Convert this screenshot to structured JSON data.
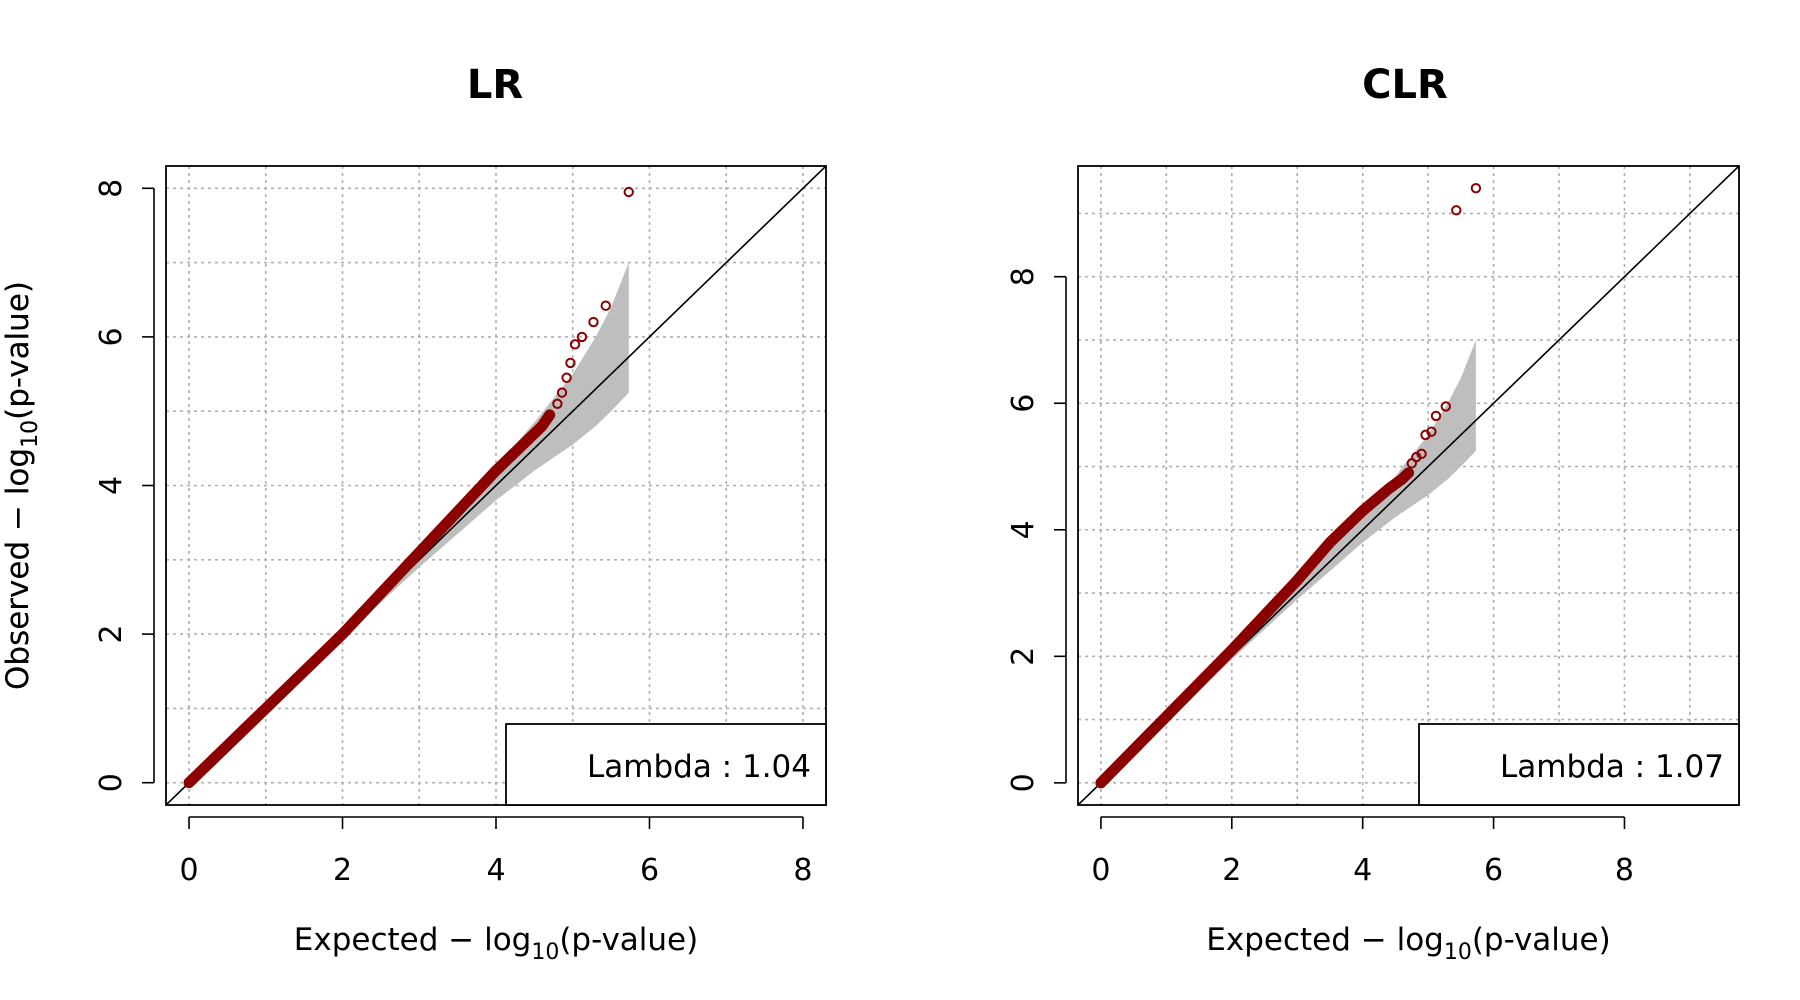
{
  "chart_data": [
    {
      "type": "scatter",
      "title": "LR",
      "xlabel": "Expected − log10(p-value)",
      "ylabel": "Observed − log10(p-value)",
      "xlabel_parts": {
        "prefix": "Expected − log",
        "sub": "10",
        "suffix": "(p-value)"
      },
      "ylabel_parts": {
        "prefix": "Observed − log",
        "sub": "10",
        "suffix": "(p-value)"
      },
      "xlim": [
        -0.3,
        8.3
      ],
      "ylim": [
        -0.3,
        8.3
      ],
      "xticks": [
        0,
        2,
        4,
        6,
        8
      ],
      "yticks": [
        0,
        2,
        4,
        6,
        8
      ],
      "grid": true,
      "reference_line": "y = x",
      "point_color": "#8b0000",
      "band_color": "#bebebe",
      "legend": {
        "text": "Lambda : 1.04",
        "position": "bottom-right"
      },
      "band": {
        "x": [
          0,
          1,
          2,
          3,
          4,
          4.5,
          5,
          5.3,
          5.5,
          5.73
        ],
        "lower": [
          0,
          0.98,
          1.95,
          2.9,
          3.8,
          4.2,
          4.55,
          4.8,
          5.0,
          5.25
        ],
        "upper": [
          0,
          1.02,
          2.06,
          3.12,
          4.25,
          4.85,
          5.5,
          6.0,
          6.4,
          7.0
        ]
      },
      "continuous_trace": {
        "x": [
          0,
          1,
          2,
          3,
          3.5,
          4,
          4.4,
          4.6,
          4.7
        ],
        "y": [
          0,
          1.0,
          2.0,
          3.1,
          3.65,
          4.2,
          4.6,
          4.8,
          4.95
        ]
      },
      "outliers": {
        "x": [
          4.8,
          4.86,
          4.92,
          4.97,
          5.03,
          5.12,
          5.27,
          5.43,
          5.73
        ],
        "y": [
          5.1,
          5.25,
          5.45,
          5.65,
          5.9,
          6.0,
          6.2,
          6.42,
          7.95
        ]
      }
    },
    {
      "type": "scatter",
      "title": "CLR",
      "xlabel": "Expected − log10(p-value)",
      "ylabel": "Observed − log10(p-value)",
      "xlabel_parts": {
        "prefix": "Expected − log",
        "sub": "10",
        "suffix": "(p-value)"
      },
      "ylabel_parts": {
        "prefix": "Observed − log",
        "sub": "10",
        "suffix": "(p-value)"
      },
      "xlim": [
        -0.35,
        9.75
      ],
      "ylim": [
        -0.35,
        9.75
      ],
      "xticks": [
        0,
        2,
        4,
        6,
        8
      ],
      "yticks": [
        0,
        2,
        4,
        6,
        8
      ],
      "grid": true,
      "reference_line": "y = x",
      "point_color": "#8b0000",
      "band_color": "#bebebe",
      "legend": {
        "text": "Lambda : 1.07",
        "position": "bottom-right"
      },
      "band": {
        "x": [
          0,
          1,
          2,
          3,
          4,
          4.5,
          5,
          5.3,
          5.5,
          5.73
        ],
        "lower": [
          0,
          0.98,
          1.95,
          2.9,
          3.8,
          4.2,
          4.55,
          4.8,
          5.0,
          5.25
        ],
        "upper": [
          0,
          1.02,
          2.06,
          3.12,
          4.25,
          4.85,
          5.5,
          6.0,
          6.4,
          7.0
        ]
      },
      "continuous_trace": {
        "x": [
          0,
          1,
          2,
          3,
          3.5,
          4,
          4.4,
          4.6,
          4.7
        ],
        "y": [
          0,
          1.05,
          2.1,
          3.2,
          3.8,
          4.3,
          4.65,
          4.8,
          4.9
        ]
      },
      "outliers": {
        "x": [
          4.75,
          4.82,
          4.9,
          4.96,
          5.05,
          5.12,
          5.27,
          5.43,
          5.73
        ],
        "y": [
          5.05,
          5.15,
          5.2,
          5.5,
          5.55,
          5.8,
          5.95,
          9.05,
          9.4
        ]
      }
    }
  ]
}
